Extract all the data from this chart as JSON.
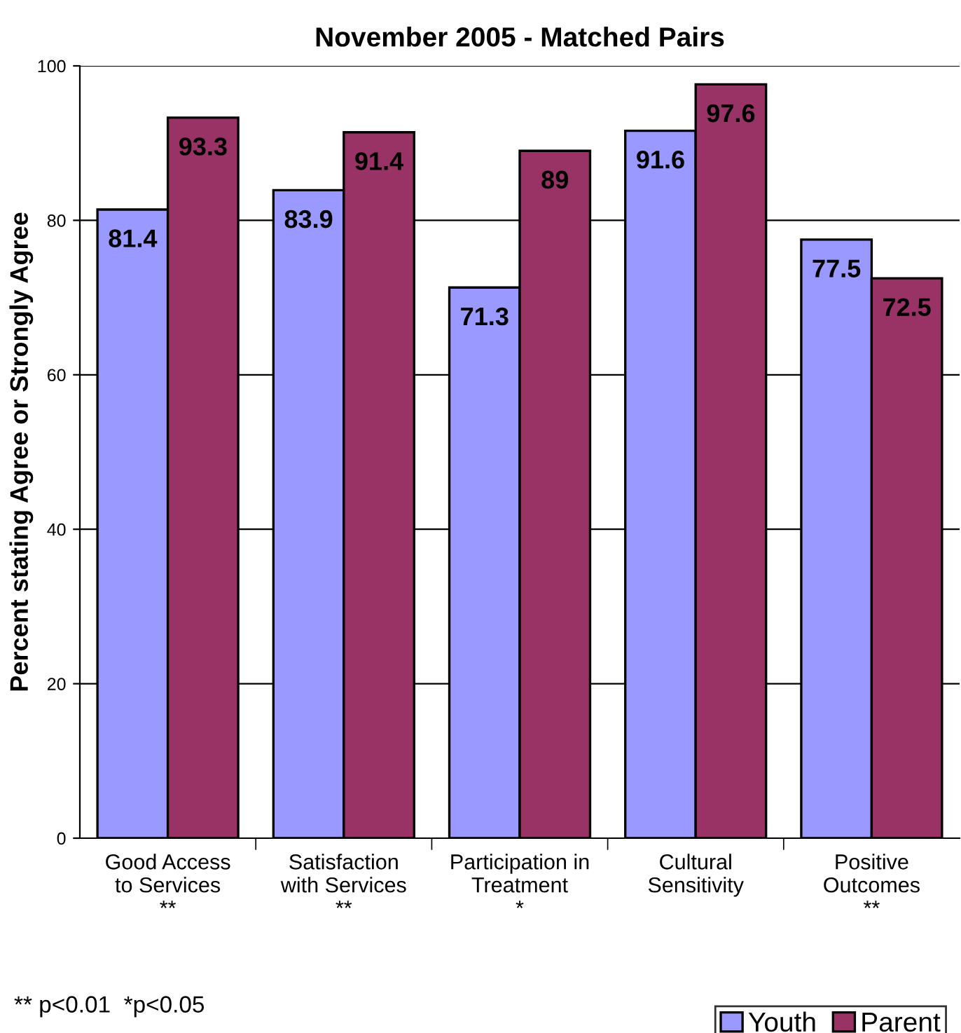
{
  "chart_data": {
    "type": "bar",
    "title": "November 2005 - Matched Pairs",
    "ylabel": "Percent stating Agree or Strongly Agree",
    "categories": [
      "Good Access\nto Services\n**",
      "Satisfaction\nwith Services\n**",
      "Participation in\nTreatment\n*",
      "Cultural\nSensitivity",
      "Positive\nOutcomes\n**"
    ],
    "series": [
      {
        "name": "Youth",
        "color": "#9999ff",
        "values": [
          81.4,
          83.9,
          71.3,
          91.6,
          77.5
        ]
      },
      {
        "name": "Parent",
        "color": "#993366",
        "values": [
          93.3,
          91.4,
          89,
          97.6,
          72.5
        ]
      }
    ],
    "ylim": [
      0,
      100
    ],
    "yticks": [
      0,
      20,
      40,
      60,
      80,
      100
    ],
    "grid": "y",
    "legend": "bottom right",
    "data_labels": true,
    "annotations": [
      "** p<0.01  *p<0.05"
    ]
  }
}
